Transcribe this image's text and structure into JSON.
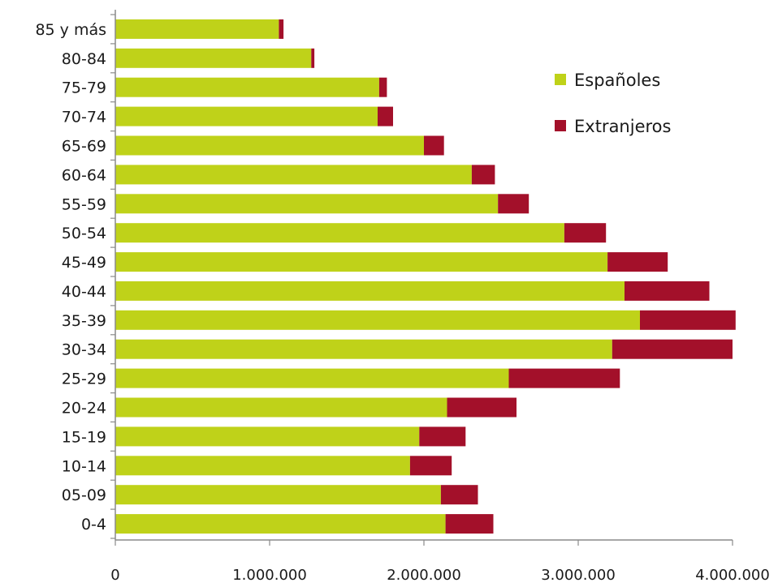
{
  "chart_data": {
    "type": "bar",
    "orientation": "horizontal",
    "stacked": true,
    "categories": [
      "0-4",
      "05-09",
      "10-14",
      "15-19",
      "20-24",
      "25-29",
      "30-34",
      "35-39",
      "40-44",
      "45-49",
      "50-54",
      "55-59",
      "60-64",
      "65-69",
      "70-74",
      "75-79",
      "80-84",
      "85 y más"
    ],
    "series": [
      {
        "name": "Españoles",
        "color": "#bfd219",
        "values": [
          2140000,
          2110000,
          1910000,
          1970000,
          2150000,
          2550000,
          3220000,
          3400000,
          3300000,
          3190000,
          2910000,
          2480000,
          2310000,
          2000000,
          1700000,
          1710000,
          1270000,
          1060000
        ]
      },
      {
        "name": "Extranjeros",
        "color": "#a3102a",
        "values": [
          310000,
          240000,
          270000,
          300000,
          450000,
          720000,
          780000,
          620000,
          550000,
          390000,
          270000,
          200000,
          150000,
          130000,
          100000,
          50000,
          20000,
          30000
        ]
      }
    ],
    "xlim": [
      0,
      4000000
    ],
    "xticks": [
      0,
      1000000,
      2000000,
      3000000,
      4000000
    ],
    "xtick_labels": [
      "0",
      "1.000.000",
      "2.000.000",
      "3.000.000",
      "4.000.000"
    ],
    "grid": false,
    "legend_position": "top-right",
    "title": "",
    "xlabel": "",
    "ylabel": ""
  }
}
